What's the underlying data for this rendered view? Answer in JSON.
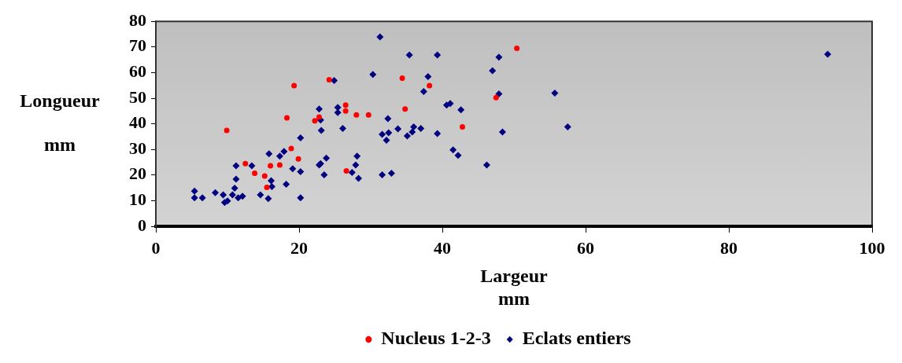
{
  "chart_data": {
    "type": "scatter",
    "xlabel": "Largeur mm",
    "ylabel": "Longueur mm",
    "xlim": [
      0,
      100
    ],
    "xticks": [
      0,
      20,
      40,
      60,
      80,
      100
    ],
    "ylim": [
      0,
      80
    ],
    "yticks": [
      0,
      10,
      20,
      30,
      40,
      50,
      60,
      70,
      80
    ],
    "grid": false,
    "legend": "bottom",
    "series": [
      {
        "name": "Nucleus 1-2-3",
        "color": "#ff0000",
        "marker": "circle",
        "x": [
          9.9,
          12.5,
          13.8,
          15.2,
          15.5,
          16.0,
          17.3,
          18.3,
          18.9,
          19.3,
          19.9,
          22.2,
          22.8,
          24.2,
          26.5,
          26.5,
          26.6,
          28.0,
          29.7,
          34.4,
          34.8,
          38.2,
          42.8,
          47.5,
          50.4
        ],
        "values": [
          37.4,
          24.5,
          20.7,
          19.6,
          15.2,
          23.6,
          23.9,
          42.3,
          30.4,
          54.9,
          26.3,
          41.2,
          42.6,
          57.2,
          47.3,
          45.0,
          21.6,
          43.5,
          43.5,
          57.8,
          45.8,
          54.9,
          38.8,
          50.2,
          69.5
        ]
      },
      {
        "name": "Eclats entiers",
        "color": "#000080",
        "marker": "diamond",
        "x": [
          5.4,
          5.4,
          6.5,
          8.3,
          9.4,
          9.6,
          10.0,
          10.7,
          11.5,
          12.1,
          11.0,
          11.2,
          11.2,
          13.4,
          14.6,
          15.7,
          16.1,
          16.2,
          18.2,
          20.2,
          15.8,
          17.3,
          17.9,
          19.1,
          20.2,
          20.2,
          22.8,
          23.0,
          23.5,
          23.8,
          23.1,
          23.0,
          25.4,
          26.1,
          24.9,
          22.8,
          25.4,
          31.3,
          35.4,
          39.3,
          47.9,
          47.0,
          30.3,
          38.0,
          37.4,
          47.9,
          40.6,
          41.1,
          42.6,
          32.4,
          31.6,
          32.5,
          33.8,
          32.2,
          35.1,
          35.8,
          36.0,
          37.0,
          39.3,
          48.4,
          41.5,
          42.2,
          46.2,
          28.1,
          27.9,
          27.4,
          28.3,
          31.6,
          32.9,
          55.7,
          57.5,
          93.8
        ],
        "values": [
          13.7,
          11.1,
          11.1,
          13.1,
          12.3,
          9.3,
          9.9,
          12.3,
          11.1,
          11.7,
          14.9,
          18.4,
          23.6,
          23.6,
          12.3,
          10.8,
          17.8,
          15.5,
          16.4,
          11.1,
          28.3,
          27.4,
          29.2,
          22.5,
          21.3,
          34.5,
          23.9,
          24.5,
          20.1,
          26.6,
          37.4,
          41.5,
          44.4,
          38.2,
          56.9,
          45.8,
          46.4,
          73.9,
          66.9,
          66.9,
          66.0,
          60.7,
          59.3,
          58.4,
          52.6,
          51.7,
          47.3,
          47.9,
          45.5,
          42.0,
          35.9,
          36.5,
          38.0,
          33.6,
          35.3,
          36.8,
          38.8,
          38.2,
          36.2,
          36.8,
          29.8,
          27.7,
          23.9,
          27.4,
          23.9,
          21.0,
          18.7,
          20.1,
          20.7,
          52.0,
          38.8,
          67.2
        ]
      }
    ]
  }
}
